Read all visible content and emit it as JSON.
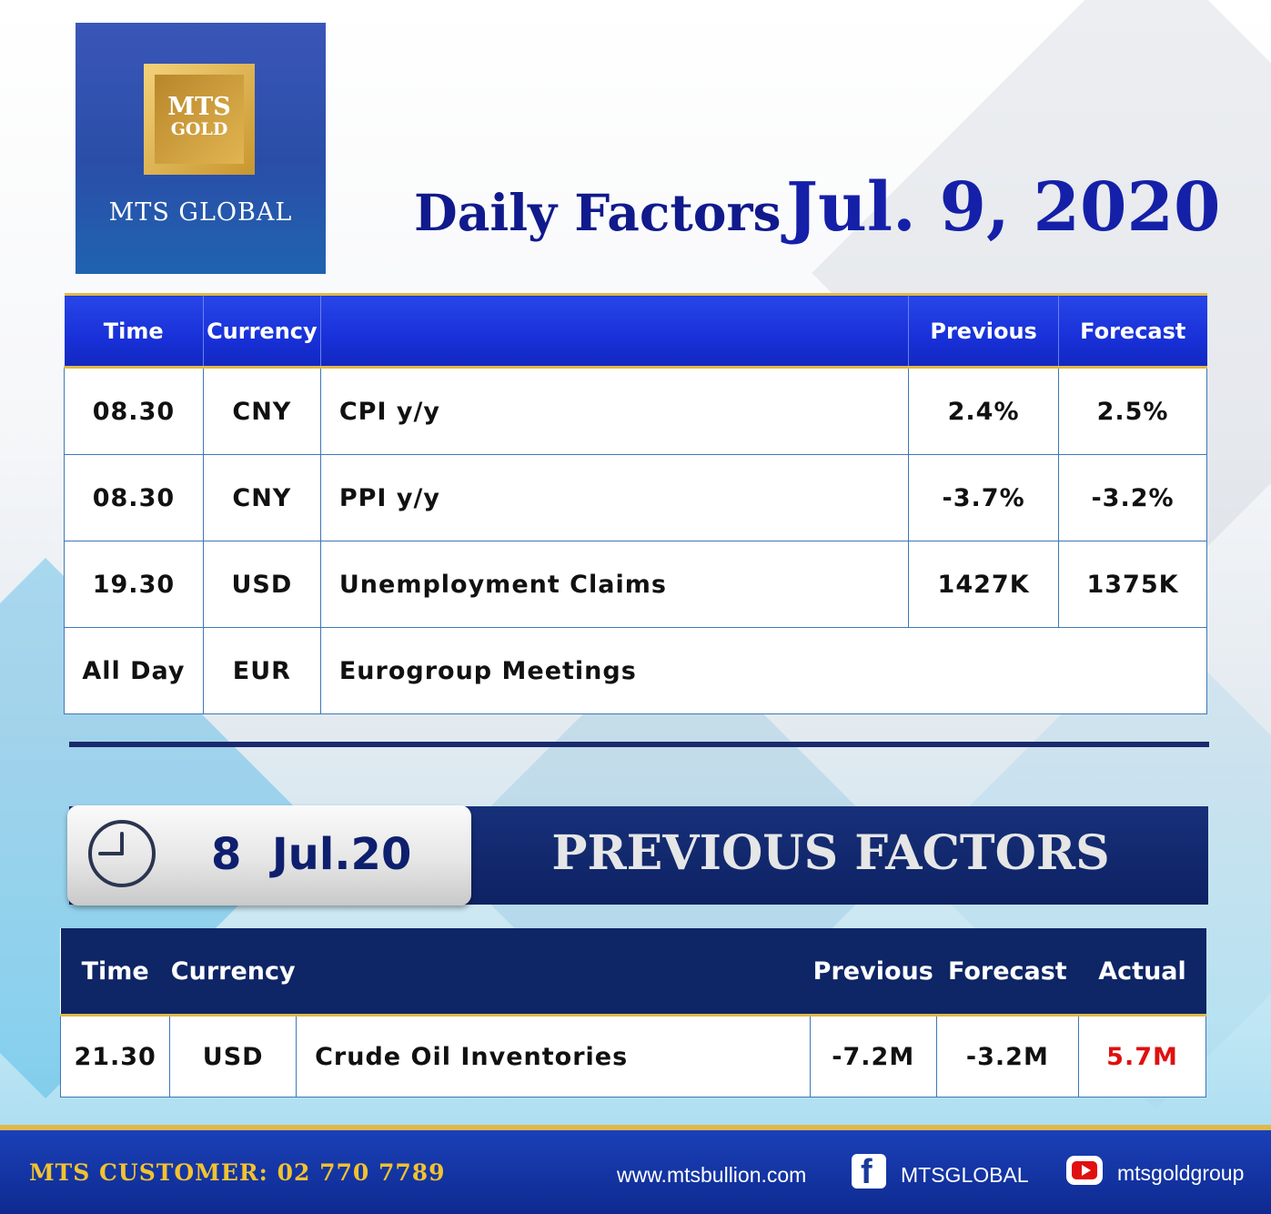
{
  "logo": {
    "box_line1": "MTS",
    "box_line2": "GOLD",
    "name": "MTS GLOBAL"
  },
  "title": {
    "prefix": "Daily Factors",
    "date": "Jul. 9, 2020"
  },
  "daily_table": {
    "headers": [
      "Time",
      "Currency",
      "",
      "Previous",
      "Forecast"
    ],
    "rows": [
      {
        "time": "08.30",
        "currency": "CNY",
        "event": "CPI y/y",
        "previous": "2.4%",
        "forecast": "2.5%"
      },
      {
        "time": "08.30",
        "currency": "CNY",
        "event": "PPI y/y",
        "previous": "-3.7%",
        "forecast": "-3.2%"
      },
      {
        "time": "19.30",
        "currency": "USD",
        "event": "Unemployment Claims",
        "previous": "1427K",
        "forecast": "1375K"
      },
      {
        "time": "All Day",
        "currency": "EUR",
        "event": "Eurogroup Meetings"
      }
    ]
  },
  "previous_section": {
    "date": "8  Jul.20",
    "title": "PREVIOUS FACTORS"
  },
  "previous_table": {
    "headers": [
      "Time",
      "Currency",
      "",
      "Previous",
      "Forecast",
      "Actual"
    ],
    "rows": [
      {
        "time": "21.30",
        "currency": "USD",
        "event": "Crude Oil Inventories",
        "previous": "-7.2M",
        "forecast": "-3.2M",
        "actual": "5.7M"
      }
    ]
  },
  "colors": {
    "actual_value": "#e01010",
    "accent_gold": "#e0b84a",
    "navy": "#0e2566"
  },
  "icons": {
    "clock": "clock-icon",
    "facebook": "facebook-icon",
    "youtube": "youtube-icon"
  },
  "footer": {
    "customer": "MTS CUSTOMER: 02 770 7789",
    "website": "www.mtsbullion.com",
    "facebook": "MTSGLOBAL",
    "youtube": "mtsgoldgroup"
  }
}
